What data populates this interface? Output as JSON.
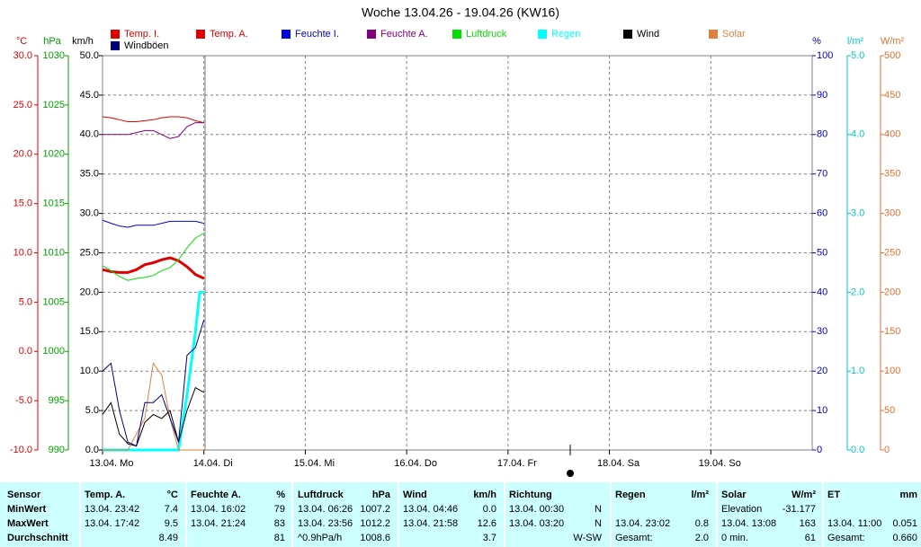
{
  "chart_data": {
    "type": "line",
    "title": "Woche 13.04.26 - 19.04.26 (KW16)",
    "xlim": [
      0,
      168
    ],
    "xticks": [
      {
        "value": 0,
        "label": "13.04. Mo"
      },
      {
        "value": 24,
        "label": "14.04. Di"
      },
      {
        "value": 48,
        "label": "15.04. Mi"
      },
      {
        "value": 72,
        "label": "16.04. Do"
      },
      {
        "value": 96,
        "label": "17.04. Fr"
      },
      {
        "value": 120,
        "label": "18.04. Sa"
      },
      {
        "value": 144,
        "label": "19.04. So"
      }
    ],
    "grid": true,
    "axes": [
      {
        "label": "°C",
        "color": "#e00000",
        "lim": [
          -10,
          30
        ],
        "ticks": [
          {
            "value": -10,
            "label": "-10.0"
          },
          {
            "value": -5,
            "label": "-5.0"
          },
          {
            "value": 0,
            "label": "0.0"
          },
          {
            "value": 5,
            "label": "5.0"
          },
          {
            "value": 10,
            "label": "10.0"
          },
          {
            "value": 15,
            "label": "15.0"
          },
          {
            "value": 20,
            "label": "20.0"
          },
          {
            "value": 25,
            "label": "25.0"
          },
          {
            "value": 30,
            "label": "30.0"
          }
        ]
      },
      {
        "label": "hPa",
        "color": "#00a000",
        "lim": [
          990,
          1030
        ],
        "ticks": [
          990,
          995,
          1000,
          1005,
          1010,
          1015,
          1020,
          1025,
          1030
        ]
      },
      {
        "label": "km/h",
        "color": "#000000",
        "lim": [
          0,
          50
        ],
        "ticks": [
          {
            "value": 0,
            "label": "0.0"
          },
          {
            "value": 5,
            "label": "5.0"
          },
          {
            "value": 10,
            "label": "10.0"
          },
          {
            "value": 15,
            "label": "15.0"
          },
          {
            "value": 20,
            "label": "20.0"
          },
          {
            "value": 25,
            "label": "25.0"
          },
          {
            "value": 30,
            "label": "30.0"
          },
          {
            "value": 35,
            "label": "35.0"
          },
          {
            "value": 40,
            "label": "40.0"
          },
          {
            "value": 45,
            "label": "45.0"
          },
          {
            "value": 50,
            "label": "50.0"
          }
        ]
      },
      {
        "label": "%",
        "color": "#0000c0",
        "lim": [
          0,
          100
        ],
        "ticks": [
          0,
          10,
          20,
          30,
          40,
          50,
          60,
          70,
          80,
          90,
          100
        ]
      },
      {
        "label": "l/m²",
        "color": "#00c8c8",
        "lim": [
          0,
          5
        ],
        "ticks": [
          {
            "value": 0,
            "label": "0.0"
          },
          {
            "value": 1,
            "label": "1.0"
          },
          {
            "value": 2,
            "label": "2.0"
          },
          {
            "value": 3,
            "label": "3.0"
          },
          {
            "value": 4,
            "label": "4.0"
          },
          {
            "value": 5,
            "label": "5.0"
          }
        ]
      },
      {
        "label": "W/m²",
        "color": "#e07030",
        "lim": [
          0,
          500
        ],
        "ticks": [
          0,
          50,
          100,
          150,
          200,
          250,
          300,
          350,
          400,
          450,
          500
        ]
      }
    ],
    "x": [
      0,
      2,
      4,
      6,
      8,
      10,
      12,
      14,
      16,
      18,
      20,
      22,
      24
    ],
    "series": [
      {
        "name": "Temp. I.",
        "color": "#e00000",
        "axis": 0,
        "values": [
          23.8,
          23.7,
          23.5,
          23.3,
          23.3,
          23.4,
          23.5,
          23.7,
          23.8,
          23.8,
          23.7,
          23.4,
          23.2
        ]
      },
      {
        "name": "Temp. A.",
        "color": "#e00000",
        "axis": 0,
        "values": [
          8.3,
          8.1,
          8.0,
          8.0,
          8.3,
          8.8,
          9.0,
          9.3,
          9.5,
          9.2,
          8.6,
          7.8,
          7.4
        ]
      },
      {
        "name": "Feuchte I.",
        "color": "#0000e0",
        "axis": 3,
        "values": [
          58.3,
          57.5,
          56.8,
          56.5,
          57,
          57,
          57,
          57.5,
          58,
          58,
          58,
          58,
          57.5
        ]
      },
      {
        "name": "Feuchte A.",
        "color": "#800080",
        "axis": 3,
        "values": [
          80,
          80,
          80,
          80,
          80.5,
          81,
          81,
          80,
          79,
          79.5,
          82,
          83,
          83
        ]
      },
      {
        "name": "Luftdruck",
        "color": "#00e000",
        "axis": 1,
        "values": [
          1008.7,
          1008.2,
          1007.6,
          1007.2,
          1007.4,
          1007.5,
          1007.7,
          1008.2,
          1008.5,
          1009.3,
          1010.5,
          1011.5,
          1012.0
        ]
      },
      {
        "name": "Regen",
        "color": "#00ffff",
        "axis": 4,
        "x": [
          0,
          18,
          20,
          22,
          23,
          24
        ],
        "values": [
          0,
          0,
          0.7,
          1.5,
          2.0,
          2.0
        ]
      },
      {
        "name": "Wind",
        "color": "#000000",
        "axis": 2,
        "values": [
          4.5,
          6,
          2,
          0.8,
          0.5,
          3.5,
          4.5,
          4,
          5,
          1,
          5,
          7.9,
          7.3
        ]
      },
      {
        "name": "Solar",
        "color": "#e08040",
        "axis": 5,
        "values": [
          0,
          0,
          0,
          0,
          20,
          40,
          110,
          95,
          40,
          0,
          0,
          0,
          0
        ]
      },
      {
        "name": "Windböen",
        "color": "#000080",
        "axis": 2,
        "values": [
          10,
          11,
          5,
          1,
          0.5,
          6,
          6,
          7,
          4,
          1,
          12,
          13,
          16.5
        ]
      }
    ]
  },
  "table": {
    "sensor_header": "Sensor",
    "columns": [
      {
        "name": "Temp. A.",
        "unit": "°C"
      },
      {
        "name": "Feuchte A.",
        "unit": "%"
      },
      {
        "name": "Luftdruck",
        "unit": "hPa"
      },
      {
        "name": "Wind",
        "unit": "km/h"
      },
      {
        "name": "Richtung"
      },
      {
        "name": "Regen",
        "unit": "l/m²"
      },
      {
        "name": "Solar",
        "unit": "W/m²"
      },
      {
        "name": "ET",
        "unit": "mm"
      }
    ],
    "rows": [
      {
        "label": "MinWert",
        "cells": [
          [
            "13.04. 23:42",
            "7.4"
          ],
          [
            "13.04. 16:02",
            "79"
          ],
          [
            "13.04. 06:26",
            "1007.2"
          ],
          [
            "13.04. 04:46",
            "0.0"
          ],
          [
            "13.04. 00:30",
            "N"
          ],
          null,
          [
            "Elevation",
            "-31.177"
          ],
          null
        ]
      },
      {
        "label": "MaxWert",
        "cells": [
          [
            "13.04. 17:42",
            "9.5"
          ],
          [
            "13.04. 21:24",
            "83"
          ],
          [
            "13.04. 23:56",
            "1012.2"
          ],
          [
            "13.04. 21:58",
            "12.6"
          ],
          [
            "13.04. 03:20",
            "N"
          ],
          [
            "13.04. 23:02",
            "0.8"
          ],
          [
            "13.04. 13:08",
            "163"
          ],
          [
            "13.04. 11:00",
            "0.051"
          ]
        ]
      },
      {
        "label": "Durchschnitt",
        "cells": [
          [
            null,
            "8.49"
          ],
          [
            null,
            "81"
          ],
          [
            "^0.9hPa/h",
            "1008.6"
          ],
          [
            null,
            "3.7"
          ],
          [
            null,
            "W-SW"
          ],
          [
            "Gesamt:",
            "2.0"
          ],
          [
            "0 min.",
            "61"
          ],
          [
            "Gesamt:",
            "0.660"
          ]
        ]
      }
    ]
  }
}
